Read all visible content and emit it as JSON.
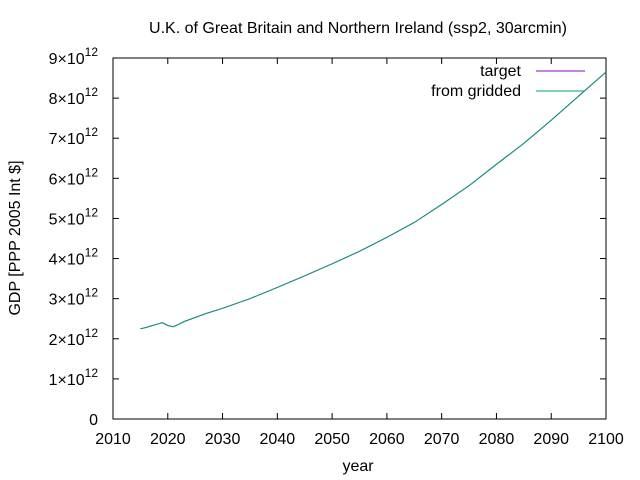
{
  "chart_data": {
    "type": "line",
    "title": "U.K. of Great Britain and Northern Ireland (ssp2, 30arcmin)",
    "xlabel": "year",
    "ylabel": "GDP [PPP 2005 Int $]",
    "xlim": [
      2010,
      2100
    ],
    "ylim": [
      0,
      9000000000000
    ],
    "x_ticks": [
      2010,
      2020,
      2030,
      2040,
      2050,
      2060,
      2070,
      2080,
      2090,
      2100
    ],
    "y_ticks": [
      0,
      1000000000000,
      2000000000000,
      3000000000000,
      4000000000000,
      5000000000000,
      6000000000000,
      7000000000000,
      8000000000000,
      9000000000000
    ],
    "y_tick_labels": [
      {
        "mantissa": "0",
        "exponent": ""
      },
      {
        "mantissa": "1×10",
        "exponent": "12"
      },
      {
        "mantissa": "2×10",
        "exponent": "12"
      },
      {
        "mantissa": "3×10",
        "exponent": "12"
      },
      {
        "mantissa": "4×10",
        "exponent": "12"
      },
      {
        "mantissa": "5×10",
        "exponent": "12"
      },
      {
        "mantissa": "6×10",
        "exponent": "12"
      },
      {
        "mantissa": "7×10",
        "exponent": "12"
      },
      {
        "mantissa": "8×10",
        "exponent": "12"
      },
      {
        "mantissa": "9×10",
        "exponent": "12"
      }
    ],
    "grid": false,
    "legend_position": "top-right",
    "x": [
      2015,
      2016,
      2017,
      2018,
      2019,
      2020,
      2021,
      2022,
      2023,
      2025,
      2027,
      2030,
      2035,
      2040,
      2045,
      2050,
      2055,
      2060,
      2065,
      2070,
      2075,
      2080,
      2085,
      2090,
      2095,
      2100
    ],
    "series": [
      {
        "name": "target",
        "color": "#9400d3",
        "values": [
          2250000000000.0,
          2280000000000.0,
          2320000000000.0,
          2360000000000.0,
          2400000000000.0,
          2330000000000.0,
          2300000000000.0,
          2360000000000.0,
          2430000000000.0,
          2530000000000.0,
          2630000000000.0,
          2760000000000.0,
          3000000000000.0,
          3280000000000.0,
          3570000000000.0,
          3870000000000.0,
          4180000000000.0,
          4530000000000.0,
          4900000000000.0,
          5350000000000.0,
          5820000000000.0,
          6350000000000.0,
          6870000000000.0,
          7450000000000.0,
          8050000000000.0,
          8650000000000.0
        ]
      },
      {
        "name": "from gridded",
        "color": "#009e73",
        "values": [
          2250000000000.0,
          2280000000000.0,
          2320000000000.0,
          2360000000000.0,
          2400000000000.0,
          2330000000000.0,
          2300000000000.0,
          2360000000000.0,
          2430000000000.0,
          2530000000000.0,
          2630000000000.0,
          2760000000000.0,
          3000000000000.0,
          3280000000000.0,
          3570000000000.0,
          3870000000000.0,
          4180000000000.0,
          4530000000000.0,
          4900000000000.0,
          5350000000000.0,
          5820000000000.0,
          6350000000000.0,
          6870000000000.0,
          7450000000000.0,
          8050000000000.0,
          8650000000000.0
        ]
      }
    ]
  }
}
